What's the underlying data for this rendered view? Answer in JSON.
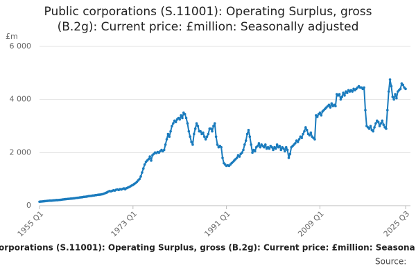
{
  "chart_data": {
    "type": "line",
    "title": "Public corporations (S.11001): Operating Surplus, gross (B.2g): Current price: £million: Seasonally adjusted",
    "ylabel": "£m",
    "footer": "orporations (S.11001): Operating Surplus, gross (B.2g): Current price: £million: Seasona",
    "source": "Source:",
    "categories": [
      "1955 Q1",
      null,
      null,
      null,
      null,
      null,
      null,
      null,
      null,
      null,
      null,
      null,
      null,
      null,
      null,
      null,
      null,
      null,
      null,
      null,
      null,
      null,
      null,
      null,
      null,
      null,
      null,
      null,
      null,
      null,
      null,
      null,
      null,
      null,
      null,
      null,
      null,
      null,
      null,
      null,
      null,
      null,
      null,
      null,
      null,
      null,
      null,
      null,
      null,
      null,
      null,
      null,
      null,
      null,
      null,
      null,
      null,
      null,
      null,
      null,
      null,
      null,
      null,
      null,
      null,
      null,
      null,
      null,
      null,
      null,
      null,
      null,
      "1973 Q1",
      null,
      null,
      null,
      null,
      null,
      null,
      null,
      null,
      null,
      null,
      null,
      null,
      null,
      null,
      null,
      null,
      null,
      null,
      null,
      null,
      null,
      null,
      null,
      null,
      null,
      null,
      null,
      null,
      null,
      null,
      null,
      null,
      null,
      null,
      null,
      null,
      null,
      null,
      null,
      null,
      null,
      null,
      null,
      null,
      null,
      null,
      null,
      null,
      null,
      null,
      null,
      null,
      null,
      null,
      null,
      null,
      null,
      null,
      null,
      null,
      null,
      null,
      null,
      null,
      null,
      null,
      null,
      null,
      null,
      null,
      null,
      "1991 Q1",
      null,
      null,
      null,
      null,
      null,
      null,
      null,
      null,
      null,
      null,
      null,
      null,
      null,
      null,
      null,
      null,
      null,
      null,
      null,
      null,
      null,
      null,
      null,
      null,
      null,
      null,
      null,
      null,
      null,
      null,
      null,
      null,
      null,
      null,
      null,
      null,
      null,
      null,
      null,
      null,
      null,
      null,
      null,
      null,
      null,
      null,
      null,
      null,
      null,
      null,
      null,
      null,
      null,
      null,
      null,
      null,
      null,
      null,
      null,
      null,
      null,
      null,
      null,
      null,
      null,
      null,
      null,
      null,
      null,
      null,
      null,
      "2009 Q1",
      null,
      null,
      null,
      null,
      null,
      null,
      null,
      null,
      null,
      null,
      null,
      null,
      null,
      null,
      null,
      null,
      null,
      null,
      null,
      null,
      null,
      null,
      null,
      null,
      null,
      null,
      null,
      null,
      null,
      null,
      null,
      null,
      null,
      null,
      null,
      null,
      null,
      null,
      null,
      null,
      null,
      null,
      null,
      null,
      null,
      null,
      null,
      null,
      null,
      null,
      null,
      null,
      null,
      null,
      null,
      null,
      null,
      null,
      null,
      null,
      null,
      null,
      null,
      null,
      null,
      "2025 Q3"
    ],
    "series": [
      {
        "name": "Operating Surplus",
        "color": "#1a7bbd",
        "values": [
          150,
          155,
          160,
          165,
          170,
          175,
          180,
          185,
          190,
          190,
          195,
          200,
          205,
          210,
          210,
          215,
          220,
          225,
          235,
          240,
          245,
          250,
          255,
          260,
          265,
          270,
          275,
          280,
          290,
          295,
          300,
          310,
          315,
          320,
          330,
          335,
          340,
          350,
          360,
          365,
          370,
          380,
          385,
          395,
          400,
          410,
          415,
          420,
          430,
          440,
          460,
          480,
          500,
          530,
          550,
          540,
          560,
          580,
          570,
          600,
          610,
          590,
          620,
          610,
          630,
          650,
          620,
          660,
          680,
          700,
          730,
          760,
          780,
          820,
          850,
          900,
          950,
          1000,
          1100,
          1250,
          1400,
          1550,
          1650,
          1700,
          1750,
          1850,
          1700,
          1900,
          1950,
          2000,
          1980,
          2020,
          2000,
          2050,
          2100,
          2050,
          2100,
          2300,
          2500,
          2700,
          2600,
          2800,
          3000,
          3100,
          3200,
          3150,
          3250,
          3300,
          3250,
          3400,
          3300,
          3500,
          3450,
          3300,
          3100,
          2800,
          2600,
          2400,
          2300,
          2700,
          2900,
          3100,
          3000,
          2800,
          2800,
          2700,
          2750,
          2600,
          2500,
          2600,
          2700,
          2900,
          2900,
          2800,
          3000,
          3100,
          2600,
          2300,
          2200,
          2250,
          2200,
          1800,
          1600,
          1550,
          1500,
          1520,
          1500,
          1550,
          1600,
          1650,
          1700,
          1750,
          1800,
          1900,
          1850,
          1950,
          2000,
          2100,
          2300,
          2450,
          2700,
          2850,
          2600,
          2300,
          2000,
          2100,
          2050,
          2200,
          2250,
          2350,
          2200,
          2300,
          2250,
          2200,
          2300,
          2150,
          2200,
          2150,
          2250,
          2200,
          2100,
          2200,
          2150,
          2300,
          2200,
          2250,
          2100,
          2200,
          2150,
          2050,
          2200,
          2100,
          1800,
          1950,
          2200,
          2250,
          2300,
          2350,
          2450,
          2400,
          2500,
          2600,
          2550,
          2700,
          2800,
          2950,
          2850,
          2700,
          2650,
          2750,
          2600,
          2550,
          2500,
          3400,
          3350,
          3450,
          3500,
          3400,
          3550,
          3600,
          3650,
          3700,
          3750,
          3800,
          3700,
          3850,
          3750,
          3800,
          3750,
          4200,
          4150,
          4200,
          4000,
          4100,
          4250,
          4150,
          4300,
          4250,
          4350,
          4300,
          4350,
          4300,
          4400,
          4350,
          4400,
          4450,
          4500,
          4450,
          4450,
          4400,
          4450,
          3600,
          3000,
          2950,
          2900,
          3000,
          2850,
          2800,
          2950,
          3100,
          3200,
          3150,
          3000,
          3100,
          3200,
          3050,
          2950,
          2900,
          3600,
          4300,
          4750,
          4500,
          4100,
          4000,
          4200,
          4050,
          4300,
          4350,
          4400,
          4600,
          4550,
          4450,
          4400
        ]
      }
    ],
    "ylim": [
      0,
      6000
    ],
    "yticks": [
      0,
      {
        "value": 2000,
        "label": "2 000"
      },
      {
        "value": 4000,
        "label": "4 000"
      },
      {
        "value": 6000,
        "label": "6 000"
      }
    ],
    "grid": true
  }
}
